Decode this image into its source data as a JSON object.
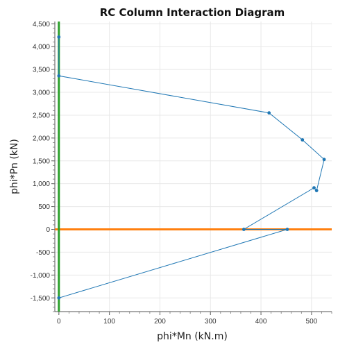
{
  "chart_data": {
    "type": "line",
    "title": "RC Column Interaction Diagram",
    "xlabel": "phi*Mn (kN.m)",
    "ylabel": "phi*Pn (kN)",
    "xlim": [
      -8,
      540
    ],
    "ylim": [
      -1800,
      4550
    ],
    "x_ticks": [
      0,
      100,
      200,
      300,
      400,
      500
    ],
    "x_tick_labels": [
      "0",
      "100",
      "200",
      "300",
      "400",
      "500"
    ],
    "y_ticks": [
      -1500,
      -1000,
      -500,
      0,
      500,
      1000,
      1500,
      2000,
      2500,
      3000,
      3500,
      4000,
      4500
    ],
    "y_tick_labels": [
      "-1,500",
      "-1,000",
      "-500",
      "0",
      "500",
      "1,000",
      "1,500",
      "2,000",
      "2,500",
      "3,000",
      "3,500",
      "4,000",
      "4,500"
    ],
    "grid": true,
    "colors": {
      "interaction_curve": "#1f77b4",
      "zero_axial_line": "#ff7f0e",
      "zero_moment_line": "#2ca02c",
      "grid": "#e8e8e8"
    },
    "series": [
      {
        "x": [
          0,
          0,
          416,
          482,
          525,
          510,
          505,
          366,
          452,
          0
        ],
        "y": [
          4210,
          3360,
          2550,
          1960,
          1530,
          850,
          910,
          0,
          0,
          -1500
        ]
      }
    ],
    "reference_lines": [
      {
        "orientation": "horizontal",
        "value": 0
      },
      {
        "orientation": "vertical",
        "value": 0
      }
    ]
  }
}
